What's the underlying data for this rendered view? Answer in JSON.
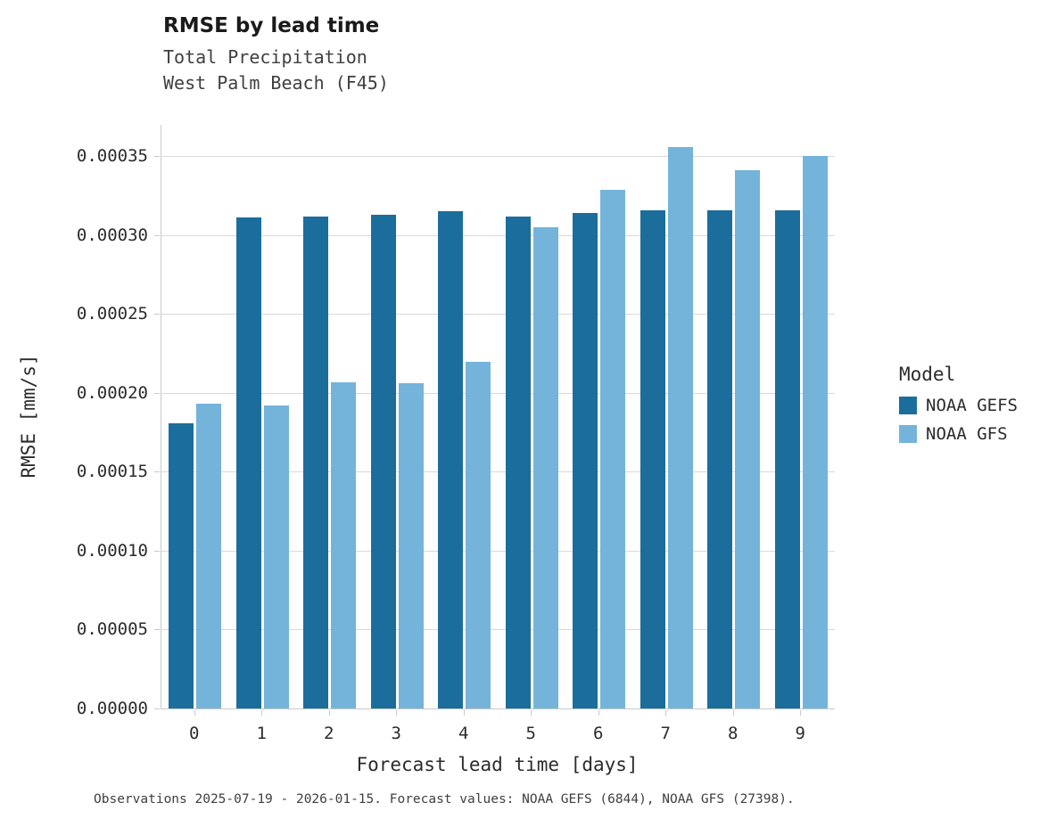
{
  "header": {
    "title": "RMSE by lead time",
    "subtitle1": "Total Precipitation",
    "subtitle2": "West Palm Beach (F45)"
  },
  "axes": {
    "x_label": "Forecast lead time [days]",
    "y_label": "RMSE [mm/s]"
  },
  "legend": {
    "title": "Model",
    "entries": [
      {
        "label": "NOAA GEFS",
        "color": "#1b6d9c"
      },
      {
        "label": "NOAA GFS",
        "color": "#74b4da"
      }
    ]
  },
  "caption": "Observations 2025-07-19 - 2026-01-15. Forecast values: NOAA GEFS (6844), NOAA GFS (27398).",
  "chart_data": {
    "type": "bar",
    "title": "RMSE by lead time",
    "subtitle": "Total Precipitation — West Palm Beach (F45)",
    "xlabel": "Forecast lead time [days]",
    "ylabel": "RMSE [mm/s]",
    "categories": [
      "0",
      "1",
      "2",
      "3",
      "4",
      "5",
      "6",
      "7",
      "8",
      "9"
    ],
    "series": [
      {
        "name": "NOAA GEFS",
        "color": "#1b6d9c",
        "values": [
          0.000181,
          0.000311,
          0.000312,
          0.000313,
          0.000315,
          0.000312,
          0.000314,
          0.000316,
          0.000316,
          0.000316
        ]
      },
      {
        "name": "NOAA GFS",
        "color": "#74b4da",
        "values": [
          0.000193,
          0.000192,
          0.000207,
          0.000206,
          0.00022,
          0.000305,
          0.000329,
          0.000356,
          0.000341,
          0.00035
        ]
      }
    ],
    "ylim": [
      0,
      0.00037
    ],
    "y_ticks": [
      {
        "value": 0.0,
        "label": "0.00000"
      },
      {
        "value": 5e-05,
        "label": "0.00005"
      },
      {
        "value": 0.0001,
        "label": "0.00010"
      },
      {
        "value": 0.00015,
        "label": "0.00015"
      },
      {
        "value": 0.0002,
        "label": "0.00020"
      },
      {
        "value": 0.00025,
        "label": "0.00025"
      },
      {
        "value": 0.0003,
        "label": "0.00030"
      },
      {
        "value": 0.00035,
        "label": "0.00035"
      }
    ],
    "grid": true,
    "legend_position": "right"
  }
}
